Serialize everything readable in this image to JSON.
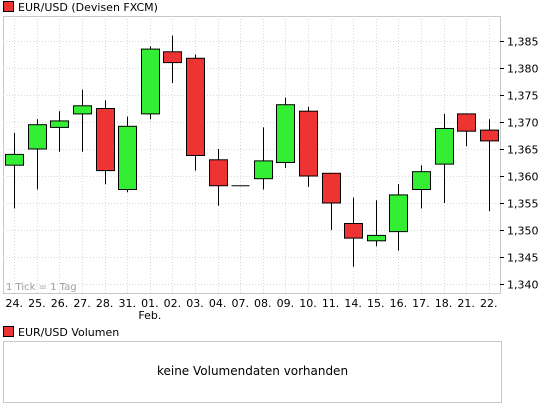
{
  "colors": {
    "up": "#33ee33",
    "down": "#ee3333",
    "outline": "#000000",
    "grid": "#d8d8d8"
  },
  "price_legend": "EUR/USD (Devisen FXCM)",
  "volume_legend": "EUR/USD Volumen",
  "volume_message": "keine Volumendaten vorhanden",
  "tick_note": "1 Tick = 1 Tag",
  "chart_data": {
    "type": "candlestick",
    "title": "EUR/USD (Devisen FXCM)",
    "xlabel": "",
    "ylabel": "",
    "ylim": [
      1.34,
      1.39
    ],
    "y_ticks": [
      "1,340",
      "1,345",
      "1,350",
      "1,355",
      "1,360",
      "1,365",
      "1,370",
      "1,375",
      "1,380",
      "1,385"
    ],
    "y_tick_values": [
      1.34,
      1.345,
      1.35,
      1.355,
      1.36,
      1.365,
      1.37,
      1.375,
      1.38,
      1.385
    ],
    "categories": [
      "24.",
      "25.",
      "26.",
      "27.",
      "28.",
      "31.",
      "01.",
      "02.",
      "03.",
      "04.",
      "07.",
      "08.",
      "09.",
      "10.",
      "11.",
      "14.",
      "15.",
      "16.",
      "17.",
      "18.",
      "21.",
      "22."
    ],
    "month_marker": {
      "category": "01.",
      "label": "Feb."
    },
    "grid": true,
    "ohlc": [
      {
        "o": 1.362,
        "h": 1.368,
        "l": 1.354,
        "c": 1.364
      },
      {
        "o": 1.365,
        "h": 1.3705,
        "l": 1.3575,
        "c": 1.3695
      },
      {
        "o": 1.369,
        "h": 1.372,
        "l": 1.3645,
        "c": 1.3702
      },
      {
        "o": 1.3715,
        "h": 1.376,
        "l": 1.3645,
        "c": 1.373
      },
      {
        "o": 1.3725,
        "h": 1.374,
        "l": 1.3585,
        "c": 1.361
      },
      {
        "o": 1.3575,
        "h": 1.371,
        "l": 1.357,
        "c": 1.3692
      },
      {
        "o": 1.3715,
        "h": 1.384,
        "l": 1.3705,
        "c": 1.3835
      },
      {
        "o": 1.383,
        "h": 1.386,
        "l": 1.3772,
        "c": 1.381
      },
      {
        "o": 1.3818,
        "h": 1.3825,
        "l": 1.361,
        "c": 1.3638
      },
      {
        "o": 1.363,
        "h": 1.365,
        "l": 1.3545,
        "c": 1.3582
      },
      {
        "o": 1.3582,
        "h": 1.3582,
        "l": 1.3582,
        "c": 1.3582
      },
      {
        "o": 1.3595,
        "h": 1.369,
        "l": 1.3575,
        "c": 1.3628
      },
      {
        "o": 1.3625,
        "h": 1.3745,
        "l": 1.3615,
        "c": 1.3732
      },
      {
        "o": 1.372,
        "h": 1.3728,
        "l": 1.358,
        "c": 1.36
      },
      {
        "o": 1.3605,
        "h": 1.3605,
        "l": 1.35,
        "c": 1.355
      },
      {
        "o": 1.3512,
        "h": 1.356,
        "l": 1.3432,
        "c": 1.3485
      },
      {
        "o": 1.348,
        "h": 1.3555,
        "l": 1.347,
        "c": 1.349
      },
      {
        "o": 1.3497,
        "h": 1.3585,
        "l": 1.3462,
        "c": 1.3565
      },
      {
        "o": 1.3575,
        "h": 1.362,
        "l": 1.354,
        "c": 1.3608
      },
      {
        "o": 1.3622,
        "h": 1.3715,
        "l": 1.355,
        "c": 1.3688
      },
      {
        "o": 1.3715,
        "h": 1.3715,
        "l": 1.3655,
        "c": 1.3683
      },
      {
        "o": 1.3685,
        "h": 1.3705,
        "l": 1.3535,
        "c": 1.3665
      }
    ]
  }
}
